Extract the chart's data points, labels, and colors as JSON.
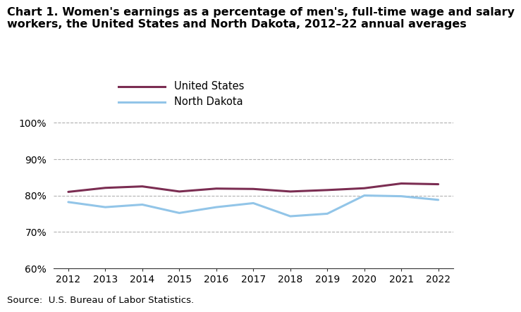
{
  "title_line1": "Chart 1. Women's earnings as a percentage of men's, full-time wage and salary",
  "title_line2": "workers, the United States and North Dakota, 2012–22 annual averages",
  "years": [
    2012,
    2013,
    2014,
    2015,
    2016,
    2017,
    2018,
    2019,
    2020,
    2021,
    2022
  ],
  "us_values": [
    81.0,
    82.1,
    82.5,
    81.1,
    81.9,
    81.8,
    81.1,
    81.5,
    82.0,
    83.3,
    83.1
  ],
  "nd_values": [
    78.2,
    76.8,
    77.5,
    75.2,
    76.8,
    77.9,
    74.3,
    75.0,
    80.0,
    79.8,
    78.8
  ],
  "us_color": "#7B2D52",
  "nd_color": "#92C5E8",
  "us_label": "United States",
  "nd_label": "North Dakota",
  "ylim_min": 60,
  "ylim_max": 102,
  "yticks": [
    60,
    70,
    80,
    90,
    100
  ],
  "source": "Source:  U.S. Bureau of Labor Statistics.",
  "background_color": "#ffffff",
  "grid_color": "#b0b0b0",
  "title_fontsize": 11.5,
  "tick_fontsize": 10,
  "legend_fontsize": 10.5,
  "source_fontsize": 9.5
}
